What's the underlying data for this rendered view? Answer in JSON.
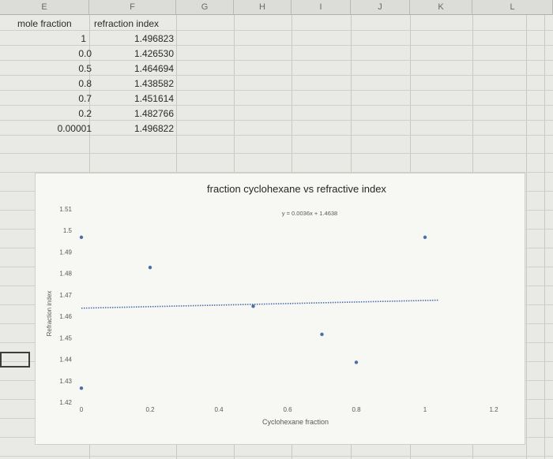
{
  "columns": [
    "E",
    "F",
    "G",
    "H",
    "I",
    "J",
    "K",
    "L"
  ],
  "table": {
    "headers": [
      "mole fraction",
      "refraction index"
    ],
    "rows": [
      [
        "1",
        "1.496823"
      ],
      [
        "0.0",
        "1.426530"
      ],
      [
        "0.5",
        "1.464694"
      ],
      [
        "0.8",
        "1.438582"
      ],
      [
        "0.7",
        "1.451614"
      ],
      [
        "0.2",
        "1.482766"
      ],
      [
        "0.00001",
        "1.496822"
      ]
    ]
  },
  "chart_data": {
    "type": "scatter",
    "title": "fraction cyclohexane vs refractive index",
    "xlabel": "Cyclohexane fraction",
    "ylabel": "Refraction index",
    "xlim": [
      0,
      1.2
    ],
    "ylim": [
      1.42,
      1.51
    ],
    "x_ticks": [
      "0",
      "0.2",
      "0.4",
      "0.6",
      "0.8",
      "1",
      "1.2"
    ],
    "y_ticks": [
      "1.42",
      "1.43",
      "1.44",
      "1.45",
      "1.46",
      "1.47",
      "1.48",
      "1.49",
      "1.5",
      "1.51"
    ],
    "series": [
      {
        "points": [
          {
            "x": 1,
            "y": 1.496823
          },
          {
            "x": 0.0,
            "y": 1.42653
          },
          {
            "x": 0.5,
            "y": 1.464694
          },
          {
            "x": 0.8,
            "y": 1.438582
          },
          {
            "x": 0.7,
            "y": 1.451614
          },
          {
            "x": 0.2,
            "y": 1.482766
          },
          {
            "x": 1e-05,
            "y": 1.496822
          }
        ]
      }
    ],
    "trendline": {
      "slope": 0.0036,
      "intercept": 1.4638,
      "equation": "y = 0.0036x + 1.4638",
      "style": "dotted"
    },
    "grid": false,
    "legend": "none"
  },
  "colors": {
    "marker": "#4a6ea8",
    "trendline": "#4a6ea8",
    "text": "#595959"
  }
}
